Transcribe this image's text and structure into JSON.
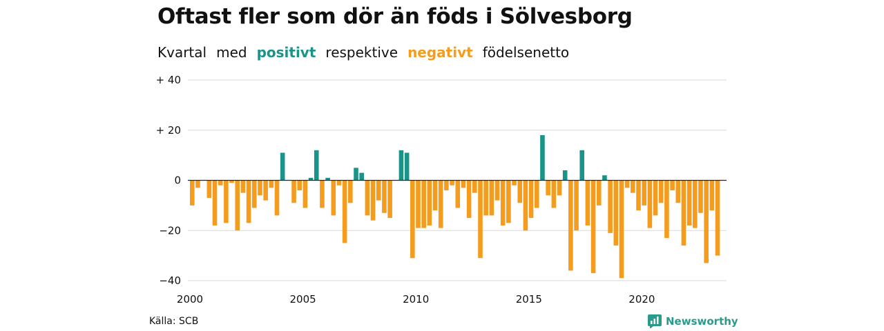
{
  "header": {
    "title": "Oftast fler som dör än föds i Sölvesborg",
    "sub_prefix": "Kvartal",
    "sub_med": "med",
    "sub_positive": "positivt",
    "sub_respective": "respektive",
    "sub_negative": "negativt",
    "sub_suffix": "födelsenetto"
  },
  "footer": {
    "source": "Källa: SCB",
    "brand": "Newsworthy"
  },
  "colors": {
    "positive": "#1a9488",
    "negative": "#f49c1e",
    "grid": "#d9d9d9",
    "zero_line": "#222222"
  },
  "chart_data": {
    "type": "bar",
    "title": "Oftast fler som dör än föds i Sölvesborg",
    "subtitle": "Kvartal med positivt respektive negativt födelsenetto",
    "xlabel": "",
    "ylabel": "",
    "ylim": [
      -40,
      40
    ],
    "y_ticks": [
      {
        "value": 40,
        "label": "+ 40"
      },
      {
        "value": 20,
        "label": "+ 20"
      },
      {
        "value": 0,
        "label": "0"
      },
      {
        "value": -20,
        "label": "−20"
      },
      {
        "value": -40,
        "label": "−40"
      }
    ],
    "x_ticks": [
      "2000",
      "2005",
      "2010",
      "2015",
      "2020"
    ],
    "start_year": 2000,
    "grid": true,
    "values": [
      -10,
      -3,
      0,
      -7,
      -18,
      -2,
      -17,
      -1,
      -20,
      -5,
      -17,
      -11,
      -6,
      -8,
      -3,
      -14,
      11,
      0,
      -9,
      -4,
      -11,
      1,
      12,
      -11,
      1,
      -14,
      -2,
      -25,
      -9,
      5,
      3,
      -14,
      -16,
      -8,
      -13,
      -15,
      0,
      12,
      11,
      -31,
      -19,
      -19,
      -18,
      -12,
      -19,
      -4,
      -2,
      -11,
      -3,
      -15,
      -5,
      -31,
      -14,
      -14,
      -8,
      -18,
      -17,
      -2,
      -9,
      -20,
      -15,
      -11,
      18,
      -6,
      -11,
      -6,
      4,
      -36,
      -20,
      12,
      -18,
      -37,
      -10,
      2,
      -21,
      -26,
      -39,
      -3,
      -5,
      -12,
      -10,
      -19,
      -14,
      -9,
      -23,
      -4,
      -9,
      -26,
      -18,
      -19,
      -13,
      -33,
      -12,
      -30
    ]
  }
}
